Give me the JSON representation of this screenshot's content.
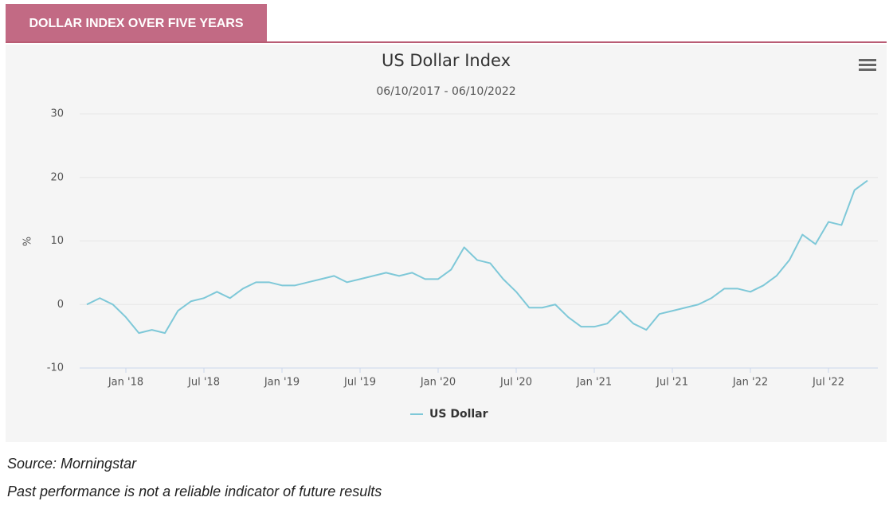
{
  "header": {
    "title": "DOLLAR INDEX OVER FIVE YEARS"
  },
  "chart_data": {
    "type": "line",
    "title": "US Dollar Index",
    "subtitle": "06/10/2017 - 06/10/2022",
    "y_label": "%",
    "x": [
      "2017-10",
      "2017-11",
      "2017-12",
      "2018-01",
      "2018-02",
      "2018-03",
      "2018-04",
      "2018-05",
      "2018-06",
      "2018-07",
      "2018-08",
      "2018-09",
      "2018-10",
      "2018-11",
      "2018-12",
      "2019-01",
      "2019-02",
      "2019-03",
      "2019-04",
      "2019-05",
      "2019-06",
      "2019-07",
      "2019-08",
      "2019-09",
      "2019-10",
      "2019-11",
      "2019-12",
      "2020-01",
      "2020-02",
      "2020-03",
      "2020-04",
      "2020-05",
      "2020-06",
      "2020-07",
      "2020-08",
      "2020-09",
      "2020-10",
      "2020-11",
      "2020-12",
      "2021-01",
      "2021-02",
      "2021-03",
      "2021-04",
      "2021-05",
      "2021-06",
      "2021-07",
      "2021-08",
      "2021-09",
      "2021-10",
      "2021-11",
      "2021-12",
      "2022-01",
      "2022-02",
      "2022-03",
      "2022-04",
      "2022-05",
      "2022-06",
      "2022-07",
      "2022-08",
      "2022-09",
      "2022-10"
    ],
    "series": [
      {
        "name": "US Dollar",
        "color": "#7ec8d8",
        "values": [
          0,
          1,
          0,
          -2,
          -4.5,
          -4,
          -4.5,
          -1,
          0.5,
          1,
          2,
          1,
          2.5,
          3.5,
          3.5,
          3,
          3,
          3.5,
          4,
          4.5,
          3.5,
          4,
          4.5,
          5,
          4.5,
          5,
          4,
          4,
          5.5,
          9,
          7,
          6.5,
          4,
          2,
          -0.5,
          -0.5,
          0,
          -2,
          -3.5,
          -3.5,
          -3,
          -1,
          -3,
          -4,
          -1.5,
          -1,
          -0.5,
          0,
          1,
          2.5,
          2.5,
          2,
          3,
          4.5,
          7,
          11,
          9.5,
          13,
          12.5,
          18,
          19.5
        ]
      }
    ],
    "xlim": [
      "2017-10",
      "2022-10"
    ],
    "xticks": [
      {
        "value": "2018-01",
        "label": "Jan '18"
      },
      {
        "value": "2018-07",
        "label": "Jul '18"
      },
      {
        "value": "2019-01",
        "label": "Jan '19"
      },
      {
        "value": "2019-07",
        "label": "Jul '19"
      },
      {
        "value": "2020-01",
        "label": "Jan '20"
      },
      {
        "value": "2020-07",
        "label": "Jul '20"
      },
      {
        "value": "2021-01",
        "label": "Jan '21"
      },
      {
        "value": "2021-07",
        "label": "Jul '21"
      },
      {
        "value": "2022-01",
        "label": "Jan '22"
      },
      {
        "value": "2022-07",
        "label": "Jul '22"
      }
    ],
    "ylim": [
      -10,
      30
    ],
    "yticks": [
      -10,
      0,
      10,
      20,
      30
    ],
    "grid": true,
    "legend": "bottom"
  },
  "footer": {
    "source": "Source: Morningstar",
    "disclaimer": "Past performance is not a reliable indicator of future results"
  }
}
